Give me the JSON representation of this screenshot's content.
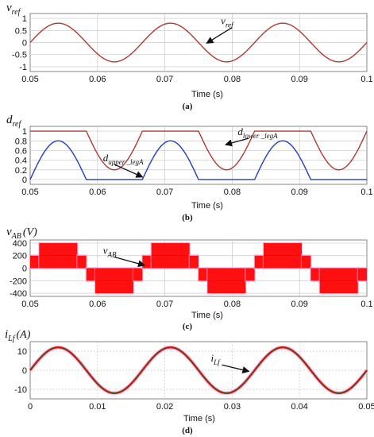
{
  "colors": {
    "red_line": "#b03a2e",
    "blue_line": "#1f3fbf",
    "pwm_fill": "#ff1010",
    "pwm_glow": "#f6a4e8",
    "current_line": "#3d5a1e",
    "grid": "#c8c8c8",
    "axis": "#666666"
  },
  "chart_data": [
    {
      "type": "line",
      "caption": "(a)",
      "ylabel_main": "v",
      "ylabel_sub": "ref",
      "xlabel": "Time (s)",
      "xlim": [
        0.05,
        0.1
      ],
      "ylim": [
        -1.2,
        1.2
      ],
      "x_ticks": [
        "0.05",
        "0.06",
        "0.07",
        "0.08",
        "0.09",
        "0.1"
      ],
      "y_ticks": [
        "1",
        "0.5",
        "0",
        "-0.5",
        "-1"
      ],
      "y_tick_values": [
        1,
        0.5,
        0,
        -0.5,
        -1
      ],
      "series": [
        {
          "color": "red_line",
          "amplitude": 0.8,
          "frequency_hz": 60,
          "phase_start": 0.05
        }
      ],
      "annotations": [
        {
          "main": "v",
          "sub": "ref",
          "x": 0.0795,
          "y": 0.75,
          "arrow_to_x": 0.0762,
          "arrow_to_y": -0.03
        }
      ]
    },
    {
      "type": "line",
      "caption": "(b)",
      "ylabel_main": "d",
      "ylabel_sub": "ref",
      "xlabel": "Time (s)",
      "xlim": [
        0.05,
        0.1
      ],
      "ylim": [
        -0.1,
        1.1
      ],
      "x_ticks": [
        "0.05",
        "0.06",
        "0.07",
        "0.08",
        "0.09",
        "0.1"
      ],
      "y_ticks": [
        "1",
        "0.8",
        "0.6",
        "0.4",
        "0.2",
        "0"
      ],
      "y_tick_values": [
        1,
        0.8,
        0.6,
        0.4,
        0.2,
        0
      ],
      "series": [
        {
          "name": "upper_legA",
          "color": "blue_line",
          "kind": "upper",
          "amplitude": 0.8,
          "frequency_hz": 60,
          "phase_start": 0.05
        },
        {
          "name": "lower_legA",
          "color": "red_line",
          "kind": "lower",
          "amplitude": 0.8,
          "frequency_hz": 60,
          "phase_start": 0.05
        }
      ],
      "annotations": [
        {
          "main": "d",
          "sub": "upper _legA",
          "x": 0.062,
          "y": 0.38,
          "arrow_to_x": 0.0667,
          "arrow_to_y": 0.05
        },
        {
          "main": "d",
          "sub": "lower _legA",
          "x": 0.082,
          "y": 0.92,
          "arrow_to_x": 0.079,
          "arrow_to_y": 0.72
        }
      ]
    },
    {
      "type": "line",
      "caption": "(c)",
      "ylabel_main": "v",
      "ylabel_sub": "AB",
      "ylabel_unit": "(V)",
      "xlabel": "Time (s)",
      "xlim": [
        0.05,
        0.1
      ],
      "ylim": [
        -450,
        450
      ],
      "x_ticks": [
        "0.05",
        "0.06",
        "0.07",
        "0.08",
        "0.09",
        "0.1"
      ],
      "y_ticks": [
        "400",
        "200",
        "0",
        "-200",
        "-400"
      ],
      "y_tick_values": [
        400,
        200,
        0,
        -200,
        -400
      ],
      "levels": [
        200,
        400
      ],
      "frequency_hz": 60,
      "phase_start": 0.05,
      "annotations": [
        {
          "main": "v",
          "sub": "AB",
          "x": 0.062,
          "y": 230,
          "arrow_to_x": 0.067,
          "arrow_to_y": 45
        }
      ]
    },
    {
      "type": "line",
      "caption": "(d)",
      "ylabel_main": "i",
      "ylabel_sub": "Lf",
      "ylabel_unit": "(A)",
      "xlabel": "Time (s)",
      "xlim": [
        0,
        0.05
      ],
      "ylim": [
        -15,
        15
      ],
      "x_ticks": [
        "0",
        "0.01",
        "0.02",
        "0.03",
        "0.04",
        "0.05"
      ],
      "y_ticks": [
        "10",
        "0",
        "-10"
      ],
      "y_tick_values": [
        10,
        0,
        -10
      ],
      "series": [
        {
          "color": "current_line",
          "amplitude": 12,
          "frequency_hz": 60,
          "phase_start": 0
        }
      ],
      "annotations": [
        {
          "main": "i",
          "sub": "Lf",
          "x": 0.028,
          "y": 4.5,
          "arrow_to_x": 0.0325,
          "arrow_to_y": -0.6
        }
      ]
    }
  ]
}
